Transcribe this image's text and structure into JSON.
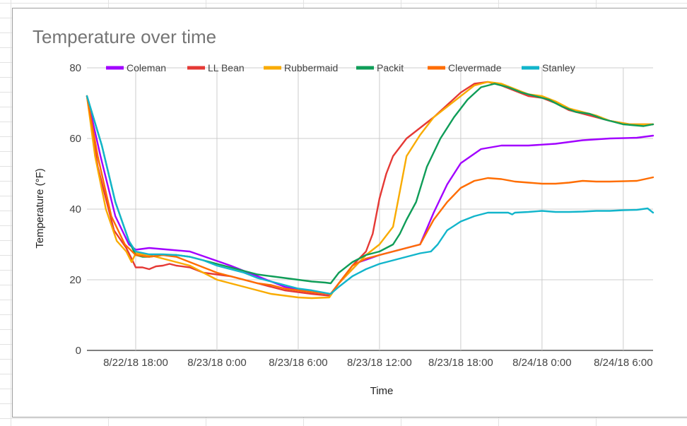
{
  "chart_data": {
    "type": "line",
    "title": "Temperature over time",
    "xlabel": "Time",
    "ylabel": "Temperature (°F)",
    "ylim": [
      0,
      80
    ],
    "yticks": [
      0,
      20,
      40,
      60,
      80
    ],
    "x_ticks": [
      "8/22/18 18:00",
      "8/23/18 0:00",
      "8/23/18 6:00",
      "8/23/18 12:00",
      "8/23/18 18:00",
      "8/24/18 0:00",
      "8/24/18 6:00"
    ],
    "x_hours": [
      0,
      6,
      12,
      18,
      24,
      30,
      36
    ],
    "xlim_hours": [
      -3.6,
      38.2
    ],
    "grid": true,
    "legend": "top",
    "series": [
      {
        "name": "Coleman",
        "color": "#a100ff",
        "points": [
          [
            -3.6,
            72
          ],
          [
            -2.6,
            55
          ],
          [
            -1.5,
            38
          ],
          [
            -0.5,
            30
          ],
          [
            0,
            28.5
          ],
          [
            1,
            29
          ],
          [
            2.5,
            28.5
          ],
          [
            4,
            28
          ],
          [
            5.5,
            26
          ],
          [
            7,
            24
          ],
          [
            9,
            21
          ],
          [
            11,
            18
          ],
          [
            13,
            16.5
          ],
          [
            14.4,
            16
          ],
          [
            15,
            19
          ],
          [
            16.5,
            25
          ],
          [
            18,
            27
          ],
          [
            20,
            29
          ],
          [
            21,
            30
          ],
          [
            22,
            39
          ],
          [
            23,
            47
          ],
          [
            24,
            53
          ],
          [
            25.5,
            57
          ],
          [
            27,
            58
          ],
          [
            29,
            58
          ],
          [
            31,
            58.5
          ],
          [
            33,
            59.5
          ],
          [
            35,
            60
          ],
          [
            37,
            60.2
          ],
          [
            38.2,
            60.8
          ]
        ]
      },
      {
        "name": "LL Bean",
        "color": "#e53935",
        "points": [
          [
            -3.6,
            72
          ],
          [
            -2.8,
            52
          ],
          [
            -1.6,
            34
          ],
          [
            -0.7,
            29
          ],
          [
            -0.3,
            26
          ],
          [
            0,
            23.5
          ],
          [
            0.5,
            23.5
          ],
          [
            1,
            23
          ],
          [
            1.5,
            23.8
          ],
          [
            2,
            24
          ],
          [
            2.5,
            24.5
          ],
          [
            3,
            24
          ],
          [
            4,
            23.5
          ],
          [
            5,
            22
          ],
          [
            6,
            21.5
          ],
          [
            7,
            21
          ],
          [
            8,
            20
          ],
          [
            9,
            19
          ],
          [
            10,
            18
          ],
          [
            11,
            17
          ],
          [
            12,
            16.5
          ],
          [
            13,
            16
          ],
          [
            14.3,
            15.5
          ],
          [
            15,
            19
          ],
          [
            16,
            24
          ],
          [
            17,
            28
          ],
          [
            17.5,
            33
          ],
          [
            18,
            43
          ],
          [
            18.5,
            50
          ],
          [
            19,
            55
          ],
          [
            20,
            60
          ],
          [
            21,
            63
          ],
          [
            22,
            66
          ],
          [
            24,
            73
          ],
          [
            25,
            75.5
          ],
          [
            26,
            76
          ],
          [
            27,
            75
          ],
          [
            28,
            73.5
          ],
          [
            29,
            72
          ],
          [
            30,
            71.5
          ],
          [
            31,
            70
          ],
          [
            32,
            68
          ],
          [
            33,
            67
          ],
          [
            34,
            66
          ],
          [
            35,
            65
          ],
          [
            36.5,
            64
          ],
          [
            38.2,
            64
          ]
        ]
      },
      {
        "name": "Rubbermaid",
        "color": "#f9ab00",
        "points": [
          [
            -3.6,
            72
          ],
          [
            -3,
            55
          ],
          [
            -2.2,
            40
          ],
          [
            -1.4,
            31
          ],
          [
            -0.7,
            28
          ],
          [
            -0.3,
            25
          ],
          [
            0,
            27.5
          ],
          [
            1,
            27
          ],
          [
            2,
            26
          ],
          [
            3,
            25
          ],
          [
            4,
            24
          ],
          [
            5,
            22
          ],
          [
            6,
            20
          ],
          [
            7,
            19
          ],
          [
            8,
            18
          ],
          [
            9,
            17
          ],
          [
            10,
            16
          ],
          [
            11,
            15.5
          ],
          [
            12,
            15
          ],
          [
            13,
            14.8
          ],
          [
            14.3,
            15
          ],
          [
            15,
            19
          ],
          [
            16,
            23
          ],
          [
            17,
            27
          ],
          [
            18,
            30
          ],
          [
            19,
            35
          ],
          [
            19.5,
            45
          ],
          [
            20,
            55
          ],
          [
            21,
            61
          ],
          [
            22,
            66
          ],
          [
            24,
            72
          ],
          [
            25,
            75
          ],
          [
            26,
            76
          ],
          [
            27,
            75.5
          ],
          [
            28,
            74
          ],
          [
            29,
            72.5
          ],
          [
            30,
            72
          ],
          [
            31,
            70.5
          ],
          [
            32,
            68.5
          ],
          [
            33,
            67.5
          ],
          [
            34,
            66.5
          ],
          [
            35,
            65
          ],
          [
            36.5,
            64
          ],
          [
            38.2,
            64
          ]
        ]
      },
      {
        "name": "Packit",
        "color": "#0f9d58",
        "points": [
          [
            -3.6,
            72
          ],
          [
            -2.5,
            58
          ],
          [
            -1.5,
            42
          ],
          [
            -0.5,
            31
          ],
          [
            0,
            27
          ],
          [
            0.5,
            26.5
          ],
          [
            1,
            26.5
          ],
          [
            2,
            27
          ],
          [
            3,
            27
          ],
          [
            4,
            26.5
          ],
          [
            5,
            25.5
          ],
          [
            6,
            24.5
          ],
          [
            7,
            23.5
          ],
          [
            8,
            22.5
          ],
          [
            9,
            21.5
          ],
          [
            10,
            21
          ],
          [
            11,
            20.5
          ],
          [
            12,
            20
          ],
          [
            13,
            19.5
          ],
          [
            14,
            19.2
          ],
          [
            14.4,
            19
          ],
          [
            15,
            22
          ],
          [
            16,
            25
          ],
          [
            17,
            27
          ],
          [
            18,
            28
          ],
          [
            19,
            30
          ],
          [
            19.5,
            33
          ],
          [
            20,
            37
          ],
          [
            20.7,
            42
          ],
          [
            21.5,
            52
          ],
          [
            22.5,
            60
          ],
          [
            23.5,
            66
          ],
          [
            24.5,
            71
          ],
          [
            25.5,
            74.5
          ],
          [
            26.5,
            75.5
          ],
          [
            27.5,
            74.5
          ],
          [
            28.5,
            73
          ],
          [
            29.5,
            72
          ],
          [
            30.5,
            71
          ],
          [
            31.5,
            69
          ],
          [
            32.5,
            67.5
          ],
          [
            33.5,
            67
          ],
          [
            34.5,
            65.5
          ],
          [
            36,
            64
          ],
          [
            37.5,
            63.5
          ],
          [
            38.2,
            64
          ]
        ]
      },
      {
        "name": "Clevermade",
        "color": "#ff6d00",
        "points": [
          [
            -3.6,
            72
          ],
          [
            -2.8,
            55
          ],
          [
            -1.8,
            38
          ],
          [
            -0.8,
            30
          ],
          [
            0,
            27
          ],
          [
            1,
            26.5
          ],
          [
            2,
            27
          ],
          [
            3,
            26.5
          ],
          [
            4,
            25
          ],
          [
            5,
            23.5
          ],
          [
            6,
            22
          ],
          [
            7,
            21
          ],
          [
            8,
            20
          ],
          [
            9,
            19
          ],
          [
            10,
            18.5
          ],
          [
            11,
            17.5
          ],
          [
            12,
            17
          ],
          [
            13,
            16.5
          ],
          [
            14.4,
            16
          ],
          [
            15,
            19
          ],
          [
            16,
            24
          ],
          [
            17,
            26
          ],
          [
            18,
            27
          ],
          [
            19,
            28
          ],
          [
            20,
            29
          ],
          [
            21,
            30
          ],
          [
            22,
            37
          ],
          [
            23,
            42
          ],
          [
            24,
            46
          ],
          [
            25,
            48
          ],
          [
            26,
            48.8
          ],
          [
            27,
            48.5
          ],
          [
            28,
            47.8
          ],
          [
            29,
            47.5
          ],
          [
            30,
            47.2
          ],
          [
            31,
            47.2
          ],
          [
            32,
            47.5
          ],
          [
            33,
            48
          ],
          [
            34,
            47.8
          ],
          [
            35,
            47.8
          ],
          [
            37,
            48
          ],
          [
            38.2,
            49
          ]
        ]
      },
      {
        "name": "Stanley",
        "color": "#12b5cb",
        "points": [
          [
            -3.6,
            72
          ],
          [
            -2.5,
            58
          ],
          [
            -1.5,
            42
          ],
          [
            -0.5,
            31
          ],
          [
            0,
            28
          ],
          [
            1,
            27.2
          ],
          [
            2,
            27.2
          ],
          [
            3,
            27
          ],
          [
            4,
            26.5
          ],
          [
            5,
            25.5
          ],
          [
            6,
            24
          ],
          [
            7,
            23
          ],
          [
            8,
            22
          ],
          [
            9,
            20.5
          ],
          [
            10,
            19.5
          ],
          [
            11,
            18.5
          ],
          [
            12,
            17.5
          ],
          [
            13,
            17
          ],
          [
            14.4,
            16
          ],
          [
            15,
            18
          ],
          [
            16,
            21
          ],
          [
            17,
            23
          ],
          [
            18,
            24.5
          ],
          [
            19,
            25.5
          ],
          [
            20,
            26.5
          ],
          [
            21,
            27.5
          ],
          [
            21.8,
            28
          ],
          [
            22.3,
            30
          ],
          [
            23,
            34
          ],
          [
            24,
            36.5
          ],
          [
            25,
            38
          ],
          [
            26,
            39
          ],
          [
            27,
            39
          ],
          [
            27.5,
            39
          ],
          [
            27.8,
            38.5
          ],
          [
            28,
            39
          ],
          [
            29,
            39.2
          ],
          [
            30,
            39.5
          ],
          [
            31,
            39.2
          ],
          [
            32,
            39.2
          ],
          [
            33,
            39.3
          ],
          [
            34,
            39.5
          ],
          [
            35,
            39.5
          ],
          [
            36,
            39.7
          ],
          [
            37,
            39.8
          ],
          [
            37.8,
            40.2
          ],
          [
            38.2,
            39
          ]
        ]
      }
    ]
  }
}
